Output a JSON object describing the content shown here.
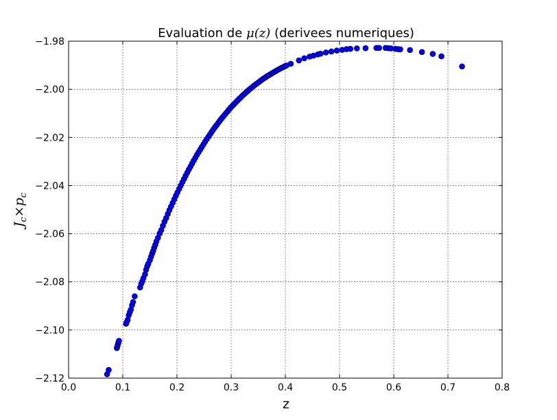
{
  "chart_data": {
    "type": "scatter",
    "title_prefix": "Evaluation de ",
    "title_math": "μ(z)",
    "title_suffix": " (derivees numeriques)",
    "xlabel": "z",
    "ylabel_math": "J_c × p_c",
    "ylabel_main_1": "J",
    "ylabel_sub_1": "c",
    "ylabel_times": "×",
    "ylabel_main_2": "p",
    "ylabel_sub_2": "c",
    "xlim": [
      0.0,
      0.8
    ],
    "ylim": [
      -2.12,
      -1.98
    ],
    "xticks": [
      0.0,
      0.1,
      0.2,
      0.3,
      0.4,
      0.5,
      0.6,
      0.7,
      0.8
    ],
    "xtick_labels": [
      "0.0",
      "0.1",
      "0.2",
      "0.3",
      "0.4",
      "0.5",
      "0.6",
      "0.7",
      "0.8"
    ],
    "yticks": [
      -2.12,
      -2.1,
      -2.08,
      -2.06,
      -2.04,
      -2.02,
      -2.0,
      -1.98
    ],
    "ytick_labels": [
      "−2.12",
      "−2.10",
      "−2.08",
      "−2.06",
      "−2.04",
      "−2.02",
      "−2.00",
      "−1.98"
    ],
    "grid": true,
    "marker_color": "#0000ff",
    "marker_edge_color": "#000000",
    "x": [
      0.071,
      0.074,
      0.089,
      0.09,
      0.091,
      0.092,
      0.093,
      0.106,
      0.107,
      0.109,
      0.111,
      0.113,
      0.115,
      0.117,
      0.119,
      0.122,
      0.132,
      0.134,
      0.136,
      0.138,
      0.141,
      0.143,
      0.145,
      0.147,
      0.15,
      0.152,
      0.154,
      0.156,
      0.158,
      0.16,
      0.162,
      0.165,
      0.168,
      0.171,
      0.174,
      0.177,
      0.18,
      0.183,
      0.186,
      0.189,
      0.192,
      0.195,
      0.198,
      0.201,
      0.204,
      0.207,
      0.21,
      0.213,
      0.216,
      0.219,
      0.222,
      0.225,
      0.228,
      0.231,
      0.234,
      0.237,
      0.24,
      0.243,
      0.246,
      0.249,
      0.252,
      0.255,
      0.258,
      0.261,
      0.264,
      0.267,
      0.27,
      0.273,
      0.276,
      0.279,
      0.282,
      0.285,
      0.288,
      0.291,
      0.294,
      0.297,
      0.3,
      0.303,
      0.306,
      0.309,
      0.312,
      0.315,
      0.318,
      0.321,
      0.324,
      0.327,
      0.33,
      0.333,
      0.336,
      0.339,
      0.342,
      0.345,
      0.348,
      0.351,
      0.354,
      0.357,
      0.36,
      0.363,
      0.366,
      0.369,
      0.372,
      0.375,
      0.378,
      0.381,
      0.384,
      0.387,
      0.39,
      0.393,
      0.396,
      0.399,
      0.402,
      0.41,
      0.425,
      0.435,
      0.445,
      0.452,
      0.46,
      0.465,
      0.475,
      0.485,
      0.495,
      0.505,
      0.513,
      0.52,
      0.532,
      0.548,
      0.568,
      0.573,
      0.585,
      0.59,
      0.595,
      0.603,
      0.608,
      0.612,
      0.63,
      0.652,
      0.672,
      0.688,
      0.726
    ],
    "y": [
      -2.1184,
      -2.1166,
      -2.1075,
      -2.1068,
      -2.106,
      -2.1052,
      -2.1045,
      -2.0974,
      -2.0968,
      -2.0958,
      -2.0939,
      -2.0926,
      -2.0915,
      -2.0897,
      -2.0884,
      -2.086,
      -2.0823,
      -2.0808,
      -2.0798,
      -2.0785,
      -2.0769,
      -2.075,
      -2.0736,
      -2.0725,
      -2.071,
      -2.0696,
      -2.0683,
      -2.0672,
      -2.0658,
      -2.0646,
      -2.0632,
      -2.0617,
      -2.0599,
      -2.0585,
      -2.0567,
      -2.055,
      -2.0535,
      -2.0518,
      -2.0502,
      -2.0487,
      -2.0472,
      -2.0457,
      -2.0442,
      -2.0428,
      -2.0414,
      -2.04,
      -2.0386,
      -2.0373,
      -2.0359,
      -2.0346,
      -2.0333,
      -2.0321,
      -2.0308,
      -2.0296,
      -2.0284,
      -2.0272,
      -2.0261,
      -2.025,
      -2.0239,
      -2.0228,
      -2.0217,
      -2.0207,
      -2.0197,
      -2.0187,
      -2.0177,
      -2.0167,
      -2.0158,
      -2.0149,
      -2.014,
      -2.0131,
      -2.0122,
      -2.0114,
      -2.0106,
      -2.0098,
      -2.009,
      -2.0082,
      -2.0074,
      -2.0067,
      -2.006,
      -2.0053,
      -2.0046,
      -2.0039,
      -2.0033,
      -2.0026,
      -2.002,
      -2.0014,
      -2.0008,
      -2.0002,
      -1.9996,
      -1.9991,
      -1.9985,
      -1.998,
      -1.9975,
      -1.997,
      -1.9965,
      -1.996,
      -1.9955,
      -1.9951,
      -1.9946,
      -1.9942,
      -1.9938,
      -1.9934,
      -1.993,
      -1.9926,
      -1.9922,
      -1.9918,
      -1.9915,
      -1.9911,
      -1.9908,
      -1.9904,
      -1.9901,
      -1.9894,
      -1.988,
      -1.9871,
      -1.9864,
      -1.986,
      -1.9855,
      -1.9852,
      -1.9847,
      -1.9843,
      -1.9839,
      -1.9836,
      -1.9833,
      -1.9832,
      -1.983,
      -1.9829,
      -1.9828,
      -1.9828,
      -1.9828,
      -1.9829,
      -1.983,
      -1.9832,
      -1.9833,
      -1.9834,
      -1.9837,
      -1.9845,
      -1.9853,
      -1.9863,
      -1.9905
    ]
  }
}
